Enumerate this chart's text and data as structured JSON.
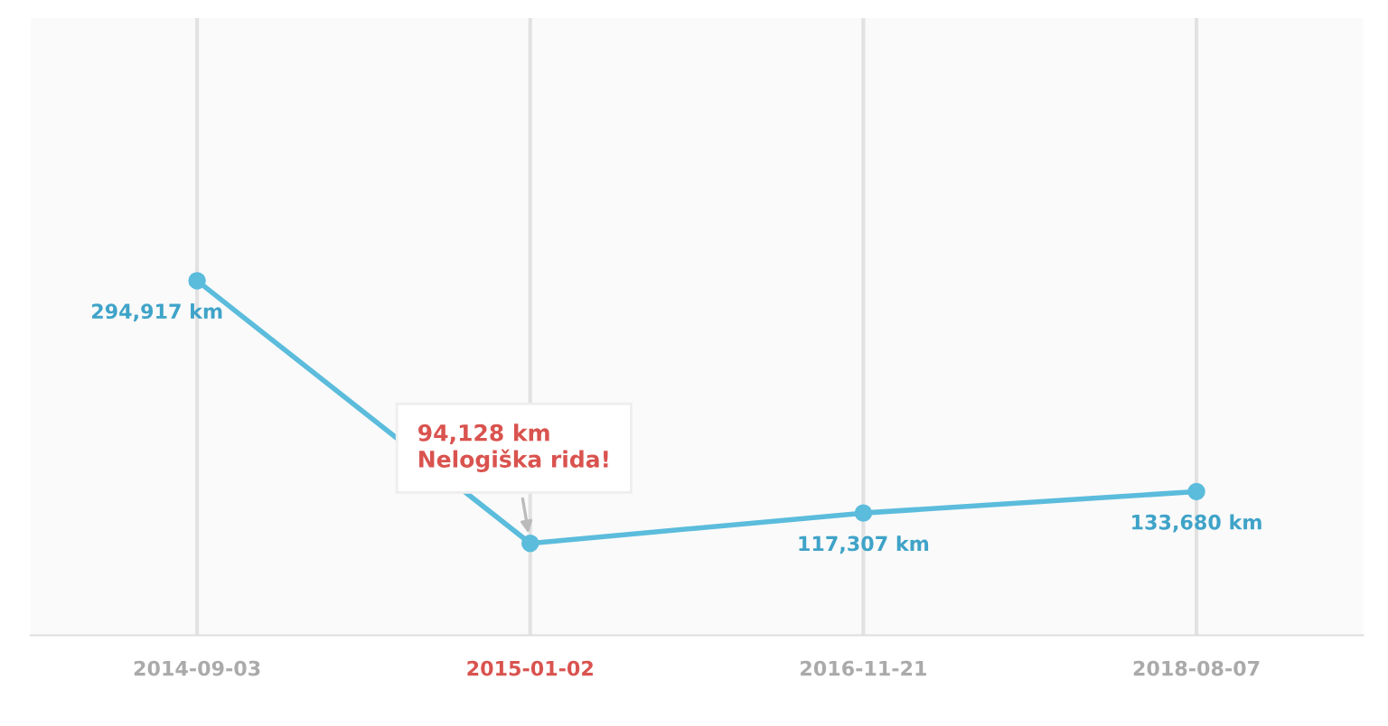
{
  "chart_data": {
    "type": "line",
    "categories": [
      "2014-09-03",
      "2015-01-02",
      "2016-11-21",
      "2018-08-07"
    ],
    "series": [
      {
        "color": "#5bbcdc",
        "values": [
          294917,
          94128,
          117307,
          133680
        ],
        "value_labels": [
          "294,917 km",
          null,
          "117,307 km",
          "133,680 km"
        ]
      }
    ],
    "annotations": [
      "94,128 km",
      "Nelogiška rida!"
    ],
    "marker": "circle",
    "line_style": "solid",
    "grid": "x",
    "legend": false
  }
}
